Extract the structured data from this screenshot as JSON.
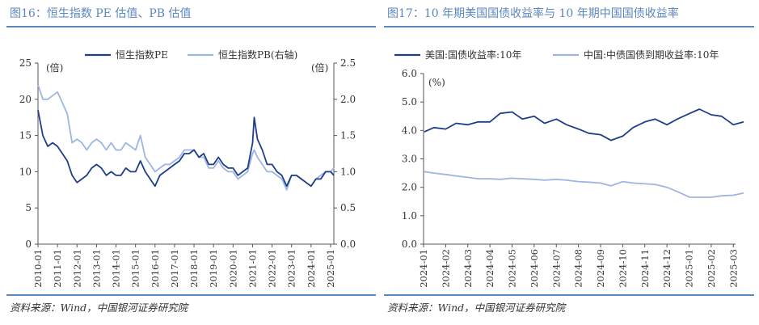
{
  "left": {
    "title": "图16：恒生指数 PE 估值、PB 估值",
    "source": "资料来源：Wind，中国银河证券研究院"
  },
  "right": {
    "title": "图17：10 年期美国国债收益率与 10 年期中国国债收益率",
    "source": "资料来源：Wind，中国银河证券研究院"
  },
  "colors": {
    "dark": "#1f3d8a",
    "light": "#9db6e0",
    "accent": "#5a86c2"
  },
  "chart_data": [
    {
      "type": "line",
      "title": "",
      "left_axis_unit": "(倍)",
      "right_axis_unit": "(倍)",
      "ylim": [
        0,
        25
      ],
      "y2lim": [
        0,
        2.5
      ],
      "yticks": [
        "0",
        "5",
        "10",
        "15",
        "20",
        "25"
      ],
      "y2ticks": [
        "0.0",
        "0.5",
        "1.0",
        "1.5",
        "2.0",
        "2.5"
      ],
      "xticks": [
        "2010-01",
        "2011-01",
        "2012-01",
        "2013-01",
        "2014-01",
        "2015-01",
        "2016-01",
        "2017-01",
        "2018-01",
        "2019-01",
        "2020-01",
        "2021-01",
        "2022-01",
        "2023-01",
        "2024-01",
        "2025-01"
      ],
      "legend_position": "top",
      "series": [
        {
          "name": "恒生指数PE",
          "axis": "left",
          "x": [
            "2010-01",
            "2010-04",
            "2010-07",
            "2010-10",
            "2011-01",
            "2011-04",
            "2011-07",
            "2011-10",
            "2012-01",
            "2012-04",
            "2012-07",
            "2012-10",
            "2013-01",
            "2013-04",
            "2013-07",
            "2013-10",
            "2014-01",
            "2014-04",
            "2014-07",
            "2014-10",
            "2015-01",
            "2015-04",
            "2015-07",
            "2015-10",
            "2016-01",
            "2016-04",
            "2016-07",
            "2016-10",
            "2017-01",
            "2017-04",
            "2017-07",
            "2017-10",
            "2018-01",
            "2018-04",
            "2018-07",
            "2018-10",
            "2019-01",
            "2019-04",
            "2019-07",
            "2019-10",
            "2020-01",
            "2020-04",
            "2020-07",
            "2020-10",
            "2021-01",
            "2021-02",
            "2021-04",
            "2021-07",
            "2021-10",
            "2022-01",
            "2022-04",
            "2022-07",
            "2022-10",
            "2023-01",
            "2023-04",
            "2023-07",
            "2023-10",
            "2024-01",
            "2024-04",
            "2024-07",
            "2024-10",
            "2025-01",
            "2025-03"
          ],
          "values": [
            18.5,
            15,
            13.5,
            14,
            13.5,
            12.5,
            11.5,
            9.5,
            8.5,
            9,
            9.5,
            10.5,
            11,
            10.5,
            9.5,
            10,
            9.5,
            9.5,
            10.5,
            10,
            10,
            11.5,
            10,
            9,
            8,
            9.5,
            10,
            10.5,
            11,
            11.5,
            12.5,
            12.5,
            13,
            12,
            12.5,
            11,
            11,
            12,
            11,
            10.5,
            10.5,
            9.5,
            10,
            10.5,
            14,
            17.5,
            14.5,
            13,
            11,
            11,
            10,
            9.5,
            8,
            9.5,
            9.5,
            9,
            8.5,
            8,
            9,
            9,
            10,
            10,
            9.5
          ]
        },
        {
          "name": "恒生指数PB(右轴)",
          "axis": "right",
          "x": [
            "2010-01",
            "2010-04",
            "2010-07",
            "2010-10",
            "2011-01",
            "2011-04",
            "2011-07",
            "2011-10",
            "2012-01",
            "2012-04",
            "2012-07",
            "2012-10",
            "2013-01",
            "2013-04",
            "2013-07",
            "2013-10",
            "2014-01",
            "2014-04",
            "2014-07",
            "2014-10",
            "2015-01",
            "2015-04",
            "2015-07",
            "2015-10",
            "2016-01",
            "2016-04",
            "2016-07",
            "2016-10",
            "2017-01",
            "2017-04",
            "2017-07",
            "2017-10",
            "2018-01",
            "2018-04",
            "2018-07",
            "2018-10",
            "2019-01",
            "2019-04",
            "2019-07",
            "2019-10",
            "2020-01",
            "2020-04",
            "2020-07",
            "2020-10",
            "2021-01",
            "2021-02",
            "2021-04",
            "2021-07",
            "2021-10",
            "2022-01",
            "2022-04",
            "2022-07",
            "2022-10",
            "2023-01",
            "2023-04",
            "2023-07",
            "2023-10",
            "2024-01",
            "2024-04",
            "2024-07",
            "2024-10",
            "2025-01",
            "2025-03"
          ],
          "values": [
            2.2,
            2.0,
            2.0,
            2.05,
            2.1,
            1.95,
            1.8,
            1.4,
            1.45,
            1.4,
            1.3,
            1.4,
            1.45,
            1.4,
            1.3,
            1.4,
            1.3,
            1.3,
            1.4,
            1.35,
            1.3,
            1.5,
            1.2,
            1.1,
            1.0,
            1.05,
            1.1,
            1.1,
            1.15,
            1.2,
            1.3,
            1.3,
            1.3,
            1.2,
            1.2,
            1.05,
            1.05,
            1.15,
            1.05,
            1.0,
            1.0,
            0.9,
            0.95,
            1.0,
            1.25,
            1.3,
            1.2,
            1.1,
            1.0,
            1.0,
            0.95,
            0.9,
            0.75,
            0.95,
            0.95,
            0.9,
            0.85,
            0.8,
            0.9,
            0.95,
            1.0,
            1.0,
            1.05
          ]
        }
      ]
    },
    {
      "type": "line",
      "title": "",
      "ylabel": "(%)",
      "ylim": [
        0,
        6
      ],
      "yticks": [
        "0.0",
        "1.0",
        "2.0",
        "3.0",
        "4.0",
        "5.0",
        "6.0"
      ],
      "xticks": [
        "2024-01",
        "2024-02",
        "2024-03",
        "2024-04",
        "2024-05",
        "2024-06",
        "2024-07",
        "2024-08",
        "2024-09",
        "2024-10",
        "2024-11",
        "2024-12",
        "2025-01",
        "2025-02",
        "2025-03"
      ],
      "legend_position": "top",
      "series": [
        {
          "name": "美国:国债收益率:10年",
          "x": [
            "2024-01-02",
            "2024-01-15",
            "2024-02-01",
            "2024-02-15",
            "2024-03-01",
            "2024-03-15",
            "2024-04-01",
            "2024-04-15",
            "2024-05-01",
            "2024-05-15",
            "2024-06-01",
            "2024-06-15",
            "2024-07-01",
            "2024-07-15",
            "2024-08-01",
            "2024-08-15",
            "2024-09-01",
            "2024-09-15",
            "2024-10-01",
            "2024-10-15",
            "2024-11-01",
            "2024-11-15",
            "2024-12-01",
            "2024-12-15",
            "2025-01-02",
            "2025-01-15",
            "2025-02-01",
            "2025-02-15",
            "2025-03-01",
            "2025-03-15"
          ],
          "values": [
            3.95,
            4.1,
            4.05,
            4.25,
            4.2,
            4.3,
            4.3,
            4.6,
            4.65,
            4.4,
            4.5,
            4.25,
            4.4,
            4.2,
            4.05,
            3.9,
            3.85,
            3.65,
            3.8,
            4.1,
            4.3,
            4.4,
            4.2,
            4.4,
            4.6,
            4.75,
            4.55,
            4.5,
            4.2,
            4.3
          ]
        },
        {
          "name": "中国:中债国债到期收益率:10年",
          "x": [
            "2024-01-02",
            "2024-01-15",
            "2024-02-01",
            "2024-02-15",
            "2024-03-01",
            "2024-03-15",
            "2024-04-01",
            "2024-04-15",
            "2024-05-01",
            "2024-05-15",
            "2024-06-01",
            "2024-06-15",
            "2024-07-01",
            "2024-07-15",
            "2024-08-01",
            "2024-08-15",
            "2024-09-01",
            "2024-09-15",
            "2024-10-01",
            "2024-10-15",
            "2024-11-01",
            "2024-11-15",
            "2024-12-01",
            "2024-12-15",
            "2025-01-02",
            "2025-01-15",
            "2025-02-01",
            "2025-02-15",
            "2025-03-01",
            "2025-03-15"
          ],
          "values": [
            2.55,
            2.5,
            2.45,
            2.4,
            2.35,
            2.3,
            2.3,
            2.28,
            2.32,
            2.3,
            2.28,
            2.25,
            2.28,
            2.25,
            2.2,
            2.18,
            2.15,
            2.05,
            2.2,
            2.15,
            2.12,
            2.1,
            2.0,
            1.85,
            1.65,
            1.65,
            1.65,
            1.7,
            1.72,
            1.8
          ]
        }
      ]
    }
  ]
}
